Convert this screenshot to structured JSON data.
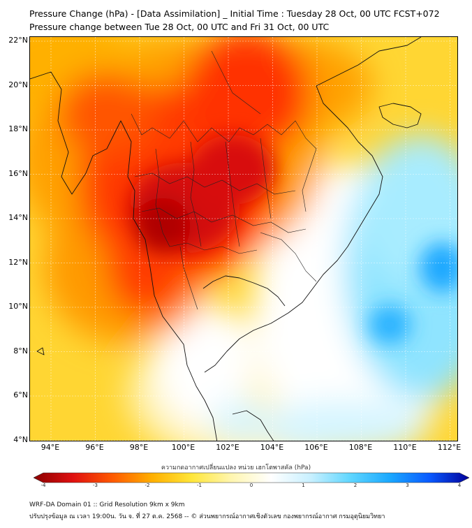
{
  "title_line1": "Pressure Change (hPa) - [Data Assimilation] _ Initial Time : Tuesday 28 Oct, 00 UTC FCST+072",
  "title_line2": "Pressure change between Tue 28 Oct, 00 UTC and Fri 31 Oct, 00 UTC",
  "lat_labels": [
    "22°N",
    "20°N",
    "18°N",
    "16°N",
    "14°N",
    "12°N",
    "10°N",
    "8°N",
    "6°N",
    "4°N"
  ],
  "lon_labels": [
    "94°E",
    "96°E",
    "98°E",
    "100°E",
    "102°E",
    "104°E",
    "106°E",
    "108°E",
    "110°E",
    "112°E"
  ],
  "colorbar": {
    "title": "ความกดอากาศเปลี่ยนแปลง หน่วย เฮกโตพาสคัล (hPa)",
    "ticks": [
      "-4",
      "-3",
      "-2",
      "-1",
      "0",
      "1",
      "2",
      "3",
      "4"
    ],
    "min": -4,
    "max": 4,
    "colors": [
      "#8b0000",
      "#e01010",
      "#ff5a00",
      "#ffb000",
      "#ffe63a",
      "#fff6b0",
      "#ffffff",
      "#c8f0ff",
      "#5fd6ff",
      "#1aa8ff",
      "#0a5aff",
      "#00009a"
    ]
  },
  "footer_line1": "WRF-DA Domain 01 :: Grid Resolution 9km x 9km",
  "footer_line2": "ปรับปรุงข้อมูล ณ เวลา 19:00น. วัน จ. ที่ 27 ต.ค. 2568 -- © ส่วนพยากรณ์อากาศเชิงตัวเลข กองพยากรณ์อากาศ กรมอุตุนิยมวิทยา"
}
